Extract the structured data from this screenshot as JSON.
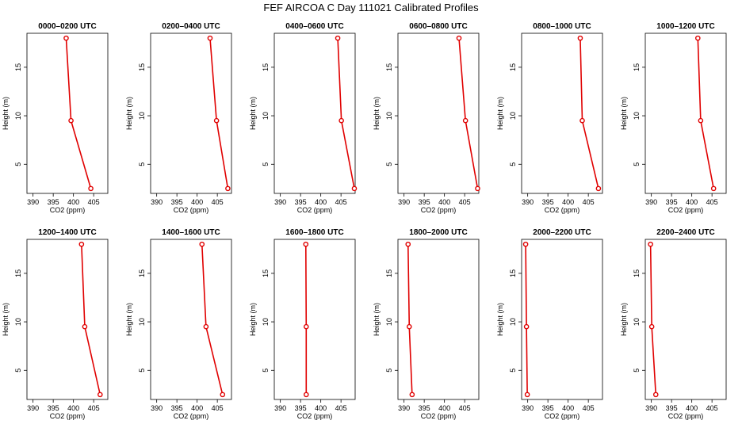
{
  "title": "FEF AIRCOA C  Day 111021  Calibrated Profiles",
  "colors": {
    "series": "#e00000",
    "axis": "#000000"
  },
  "chart_data": {
    "type": "line",
    "panels_layout": "2 rows x 6 columns",
    "xlabel": "CO2 (ppm)",
    "ylabel": "Height (m)",
    "xlim": [
      388.5,
      408.5
    ],
    "ylim": [
      2,
      18.5
    ],
    "xticks": [
      390,
      395,
      400,
      405
    ],
    "yticks": [
      5,
      10,
      15
    ],
    "heights": [
      18,
      9.5,
      2.5
    ],
    "grid": false,
    "panels": [
      {
        "title": "0000–0200 UTC",
        "co2": [
          398.2,
          399.4,
          404.3
        ]
      },
      {
        "title": "0200–0400 UTC",
        "co2": [
          403.2,
          404.8,
          407.6
        ]
      },
      {
        "title": "0400–0600 UTC",
        "co2": [
          404.2,
          405.1,
          408.3
        ]
      },
      {
        "title": "0600–0800 UTC",
        "co2": [
          403.6,
          405.2,
          408.2
        ]
      },
      {
        "title": "0800–1000 UTC",
        "co2": [
          403.0,
          403.5,
          407.5
        ]
      },
      {
        "title": "1000–1200 UTC",
        "co2": [
          401.5,
          402.2,
          405.4
        ]
      },
      {
        "title": "1200–1400 UTC",
        "co2": [
          402.0,
          402.8,
          406.6
        ]
      },
      {
        "title": "1400–1600 UTC",
        "co2": [
          401.2,
          402.2,
          406.3
        ]
      },
      {
        "title": "1600–1800 UTC",
        "co2": [
          396.3,
          396.4,
          396.4
        ]
      },
      {
        "title": "1800–2000 UTC",
        "co2": [
          391.0,
          391.3,
          392.0
        ]
      },
      {
        "title": "2000–2200 UTC",
        "co2": [
          389.5,
          389.7,
          389.9
        ]
      },
      {
        "title": "2200–2400 UTC",
        "co2": [
          389.8,
          390.1,
          391.1
        ]
      }
    ]
  }
}
